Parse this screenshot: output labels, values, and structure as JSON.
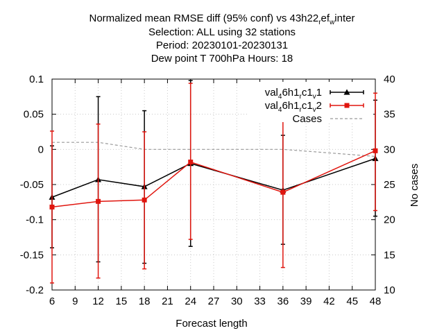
{
  "chart_data": {
    "type": "line",
    "title": {
      "line1": [
        "Normalized mean RMSE diff (95% conf) vs 43h22",
        "r",
        "ef",
        "w",
        "inter"
      ],
      "line2": "Selection: ALL using    32 stations",
      "line3": "Period: 20230101-20230131",
      "line4": "Dew point T 700hPa   Hours:  18"
    },
    "xlabel": "Forecast length",
    "ylabel": "",
    "y2label": "No cases",
    "x_ticks": [
      6,
      9,
      12,
      15,
      18,
      21,
      24,
      27,
      30,
      33,
      36,
      39,
      42,
      45,
      48
    ],
    "y_ticks": [
      -0.2,
      -0.15,
      -0.1,
      -0.05,
      0,
      0.05,
      0.1
    ],
    "y_tick_labels": [
      "-0.2",
      "-0.15",
      "-0.1",
      "-0.05",
      "0",
      "0.05",
      "0.1"
    ],
    "y2_ticks": [
      10,
      15,
      20,
      25,
      30,
      35,
      40
    ],
    "xlim": [
      6,
      48
    ],
    "ylim": [
      -0.2,
      0.1
    ],
    "y2lim": [
      10,
      40
    ],
    "grid": true,
    "legend_position": "top-right",
    "series": [
      {
        "name": [
          "val",
          "4",
          "6h1",
          "r",
          "c1",
          "v",
          "1"
        ],
        "color": "#000000",
        "marker": "triangle",
        "x": [
          6,
          12,
          18,
          24,
          36,
          48
        ],
        "y": [
          -0.068,
          -0.043,
          -0.053,
          -0.02,
          -0.058,
          -0.013
        ],
        "err_low": [
          -0.14,
          -0.16,
          -0.162,
          -0.138,
          -0.135,
          -0.095
        ],
        "err_high": [
          0.005,
          0.075,
          0.055,
          0.098,
          0.02,
          0.07
        ]
      },
      {
        "name": [
          "val",
          "4",
          "6h1",
          "r",
          "c1",
          "v",
          "2"
        ],
        "color": "#e0150e",
        "marker": "square",
        "x": [
          6,
          12,
          18,
          24,
          36,
          48
        ],
        "y": [
          -0.082,
          -0.074,
          -0.072,
          -0.018,
          -0.061,
          -0.002
        ],
        "err_low": [
          -0.19,
          -0.183,
          -0.17,
          -0.128,
          -0.168,
          -0.087
        ],
        "err_high": [
          0.026,
          0.036,
          0.025,
          0.094,
          0.042,
          0.08
        ]
      },
      {
        "name": [
          "Cases"
        ],
        "color": "#999999",
        "style": "dashed",
        "axis": "y2",
        "x": [
          6,
          12,
          18,
          24,
          36,
          48
        ],
        "y": [
          31,
          31,
          30,
          30,
          30,
          29
        ]
      }
    ]
  }
}
